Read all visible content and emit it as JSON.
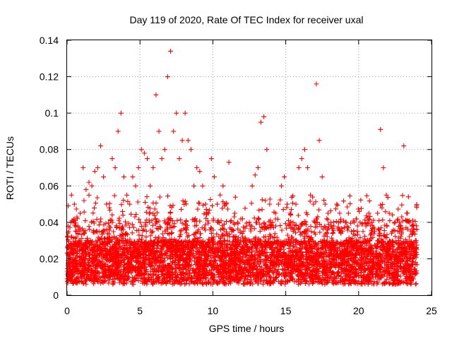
{
  "chart_data": {
    "type": "scatter",
    "title": "Day 119 of 2020, Rate Of TEC Index for receiver uxal",
    "xlabel": "GPS time / hours",
    "ylabel": "ROTI / TECUs",
    "xlim": [
      0,
      25
    ],
    "ylim": [
      0,
      0.14
    ],
    "xticks": [
      "0",
      "5",
      "10",
      "15",
      "20",
      "25"
    ],
    "yticks": [
      "0",
      "0.02",
      "0.04",
      "0.06",
      "0.08",
      "0.1",
      "0.12",
      "0.14"
    ],
    "grid": true,
    "marker": "+",
    "color": "#ff0000",
    "series": [
      {
        "x": [
          0.1,
          0.3,
          0.5,
          0.7,
          0.9,
          1.1,
          1.3,
          1.5,
          1.7,
          1.9,
          2.1,
          2.3,
          2.5,
          2.7,
          2.9,
          3.1,
          3.3,
          3.5,
          3.7,
          3.9,
          4.1,
          4.3,
          4.5,
          4.7,
          4.9,
          5.1,
          5.3,
          5.5,
          5.7,
          5.9,
          6.1,
          6.3,
          6.5,
          6.7,
          6.9,
          7.1,
          7.3,
          7.5,
          7.7,
          7.9,
          8.1,
          8.3,
          8.5,
          8.7,
          8.9,
          9.1,
          9.3,
          9.5,
          9.7,
          9.9,
          10.1,
          10.3,
          10.5,
          10.7,
          10.9,
          11.1,
          11.3,
          11.5,
          11.7,
          11.9,
          12.1,
          12.3,
          12.5,
          12.7,
          12.9,
          13.1,
          13.3,
          13.5,
          13.7,
          13.9,
          14.1,
          14.3,
          14.5,
          14.7,
          14.9,
          15.1,
          15.3,
          15.5,
          15.7,
          15.9,
          16.1,
          16.3,
          16.5,
          16.7,
          16.9,
          17.1,
          17.3,
          17.5,
          17.7,
          17.9,
          18.1,
          18.3,
          18.5,
          18.7,
          18.9,
          19.1,
          19.3,
          19.5,
          19.7,
          19.9,
          20.1,
          20.3,
          20.5,
          20.7,
          20.9,
          21.1,
          21.3,
          21.5,
          21.7,
          21.9,
          22.1,
          22.3,
          22.5,
          22.7,
          22.9,
          23.1,
          23.3,
          23.5,
          23.7,
          23.9
        ],
        "y": [
          0.035,
          0.055,
          0.05,
          0.042,
          0.045,
          0.07,
          0.058,
          0.062,
          0.06,
          0.068,
          0.07,
          0.082,
          0.065,
          0.05,
          0.048,
          0.075,
          0.07,
          0.09,
          0.1,
          0.065,
          0.055,
          0.05,
          0.065,
          0.06,
          0.07,
          0.08,
          0.078,
          0.075,
          0.06,
          0.07,
          0.11,
          0.09,
          0.075,
          0.08,
          0.12,
          0.134,
          0.09,
          0.1,
          0.075,
          0.085,
          0.1,
          0.085,
          0.08,
          0.06,
          0.07,
          0.068,
          0.06,
          0.05,
          0.045,
          0.075,
          0.065,
          0.05,
          0.055,
          0.06,
          0.05,
          0.073,
          0.035,
          0.045,
          0.04,
          0.03,
          0.035,
          0.038,
          0.04,
          0.06,
          0.066,
          0.07,
          0.095,
          0.098,
          0.08,
          0.05,
          0.04,
          0.045,
          0.05,
          0.06,
          0.065,
          0.05,
          0.045,
          0.04,
          0.05,
          0.07,
          0.075,
          0.08,
          0.07,
          0.055,
          0.05,
          0.116,
          0.085,
          0.065,
          0.05,
          0.045,
          0.04,
          0.038,
          0.05,
          0.045,
          0.035,
          0.04,
          0.045,
          0.035,
          0.04,
          0.035,
          0.04,
          0.035,
          0.038,
          0.045,
          0.04,
          0.035,
          0.045,
          0.091,
          0.07,
          0.055,
          0.045,
          0.035,
          0.04,
          0.035,
          0.038,
          0.082,
          0.045,
          0.04,
          0.035,
          0.03
        ]
      }
    ]
  }
}
